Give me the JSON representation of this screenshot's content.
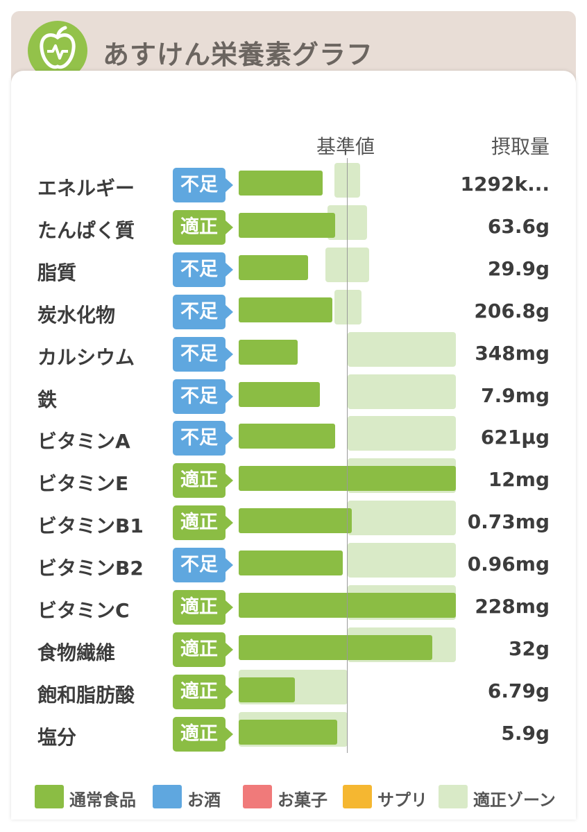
{
  "header": {
    "title": "あすけん栄養素グラフ"
  },
  "columns": {
    "baseline": "基準値",
    "intake": "摂取量"
  },
  "colors": {
    "food": "#8bbd44",
    "alcohol": "#5fa7df",
    "snack": "#f07a7a",
    "supplement": "#f5b731",
    "zone": "#d9eac7",
    "status_lack": "#5fa7df",
    "status_ok": "#8bbd44"
  },
  "chart_data": {
    "type": "bar",
    "categories": [
      "エネルギー",
      "たんぱく質",
      "脂質",
      "炭水化物",
      "カルシウム",
      "鉄",
      "ビタミンA",
      "ビタミンE",
      "ビタミンB1",
      "ビタミンB2",
      "ビタミンC",
      "食物繊維",
      "飽和脂肪酸",
      "塩分"
    ],
    "status": [
      "不足",
      "適正",
      "不足",
      "不足",
      "不足",
      "不足",
      "不足",
      "適正",
      "適正",
      "不足",
      "適正",
      "適正",
      "適正",
      "適正"
    ],
    "intake_labels": [
      "1292k...",
      "63.6g",
      "29.9g",
      "206.8g",
      "348mg",
      "7.9mg",
      "621μg",
      "12mg",
      "0.73mg",
      "0.96mg",
      "228mg",
      "32g",
      "6.79g",
      "5.9g"
    ],
    "values_pct_of_baseline": [
      77,
      89,
      64,
      86,
      54,
      75,
      89,
      200,
      104,
      96,
      200,
      178,
      52,
      91
    ],
    "zone_pct": [
      [
        88,
        112
      ],
      [
        82,
        118
      ],
      [
        80,
        120
      ],
      [
        88,
        113
      ],
      [
        100,
        200
      ],
      [
        100,
        200
      ],
      [
        100,
        200
      ],
      [
        100,
        200
      ],
      [
        100,
        200
      ],
      [
        100,
        200
      ],
      [
        100,
        200
      ],
      [
        100,
        200
      ],
      [
        0,
        100
      ],
      [
        0,
        100
      ]
    ],
    "series": [
      {
        "name": "通常食品"
      }
    ],
    "legend": [
      {
        "label": "通常食品",
        "color": "#8bbd44"
      },
      {
        "label": "お酒",
        "color": "#5fa7df"
      },
      {
        "label": "お菓子",
        "color": "#f07a7a"
      },
      {
        "label": "サプリ",
        "color": "#f5b731"
      },
      {
        "label": "適正ゾーン",
        "color": "#d9eac7"
      }
    ],
    "legend_position": "bottom"
  }
}
